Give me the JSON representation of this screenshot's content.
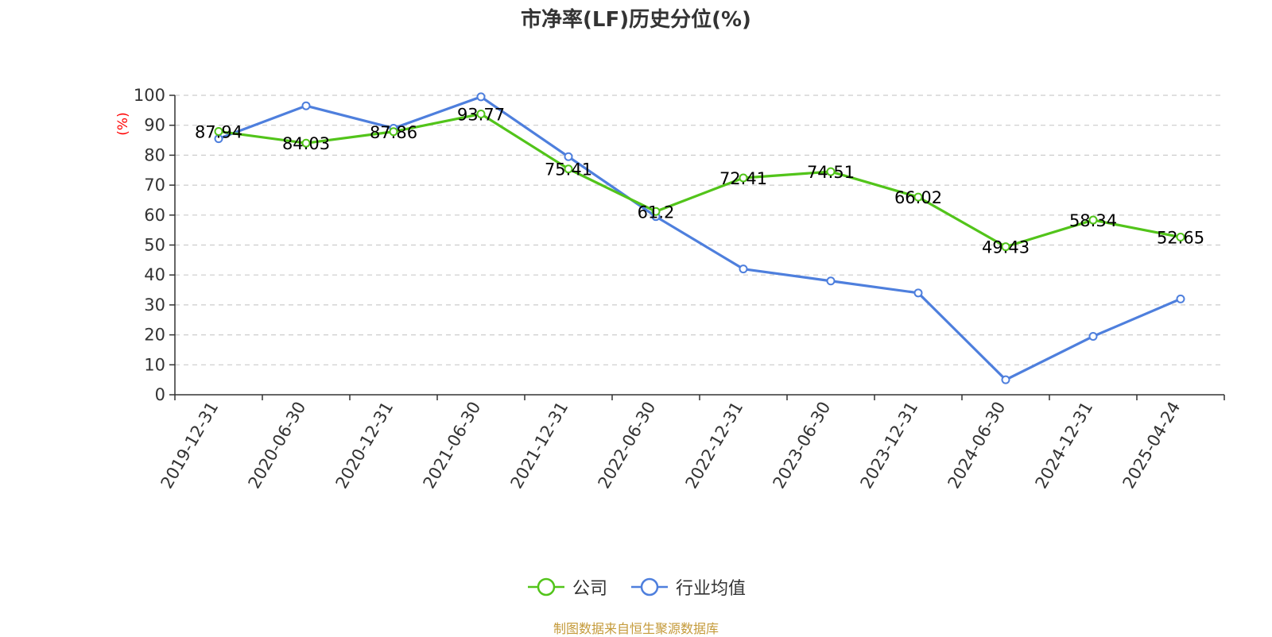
{
  "chart_data": {
    "type": "line",
    "title": "市净率(LF)历史分位(%)",
    "ylabel": "(%)",
    "ylim": [
      0,
      100
    ],
    "yticks": [
      0,
      10,
      20,
      30,
      40,
      50,
      60,
      70,
      80,
      90,
      100
    ],
    "grid": true,
    "legend_position": "bottom",
    "categories": [
      "2019-12-31",
      "2020-06-30",
      "2020-12-31",
      "2021-06-30",
      "2021-12-31",
      "2022-06-30",
      "2022-12-31",
      "2023-06-30",
      "2023-12-31",
      "2024-06-30",
      "2024-12-31",
      "2025-04-24"
    ],
    "series": [
      {
        "name": "公司",
        "color": "#52c41a",
        "values": [
          87.94,
          84.03,
          87.86,
          93.77,
          75.41,
          61.2,
          72.41,
          74.51,
          66.02,
          49.43,
          58.34,
          52.65
        ],
        "labels": [
          "87.94",
          "84.03",
          "87.86",
          "93.77",
          "75.41",
          "61.2",
          "72.41",
          "74.51",
          "66.02",
          "49.43",
          "58.34",
          "52.65"
        ]
      },
      {
        "name": "行业均值",
        "color": "#4e7fdd",
        "values": [
          85.5,
          96.5,
          89.0,
          99.5,
          79.5,
          59.5,
          42.0,
          38.0,
          34.0,
          5.0,
          19.5,
          32.0
        ]
      }
    ]
  },
  "source": "制图数据来自恒生聚源数据库"
}
